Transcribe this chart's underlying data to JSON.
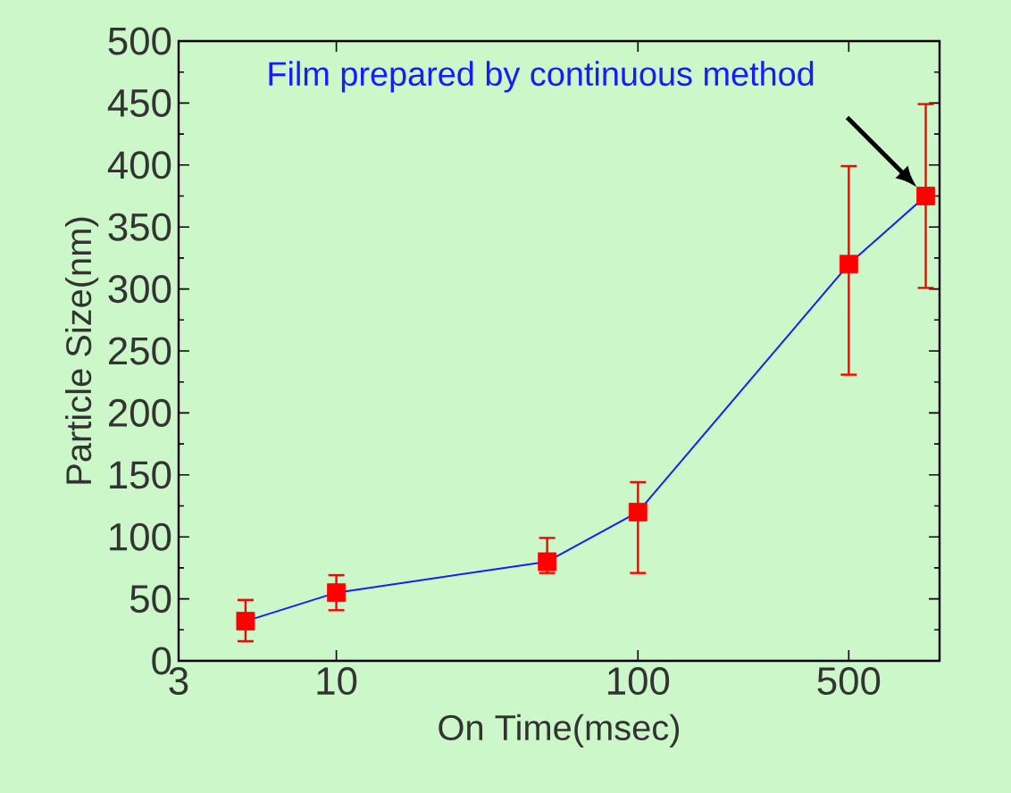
{
  "chart_data": {
    "type": "line",
    "xlabel": "On Time(msec)",
    "ylabel": "Particle Size(nm)",
    "annotations": [
      "Film prepared by continuous method"
    ],
    "x": [
      5,
      10,
      50,
      100,
      500,
      900
    ],
    "series": [
      {
        "color": "#1a1aff",
        "colors": [
          "#ff0000",
          "#ff0000",
          "#ff0000",
          "#ff0000",
          "#ff0000",
          "#ff0000"
        ],
        "values": [
          32,
          55,
          80,
          120,
          320,
          375
        ],
        "errors": [
          [
            15,
            50
          ],
          [
            40,
            70
          ],
          [
            70,
            100
          ],
          [
            70,
            145
          ],
          [
            230,
            400
          ],
          [
            300,
            450
          ]
        ]
      }
    ],
    "xlim": [
      3,
      1000
    ],
    "ylim": [
      0,
      500
    ],
    "xticks": [
      3,
      10,
      100,
      500
    ],
    "yticks": [
      0,
      50,
      100,
      150,
      200,
      250,
      300,
      350,
      400,
      450,
      500
    ],
    "log": "x",
    "grid": false,
    "marker": "square",
    "line_style": "solid"
  }
}
